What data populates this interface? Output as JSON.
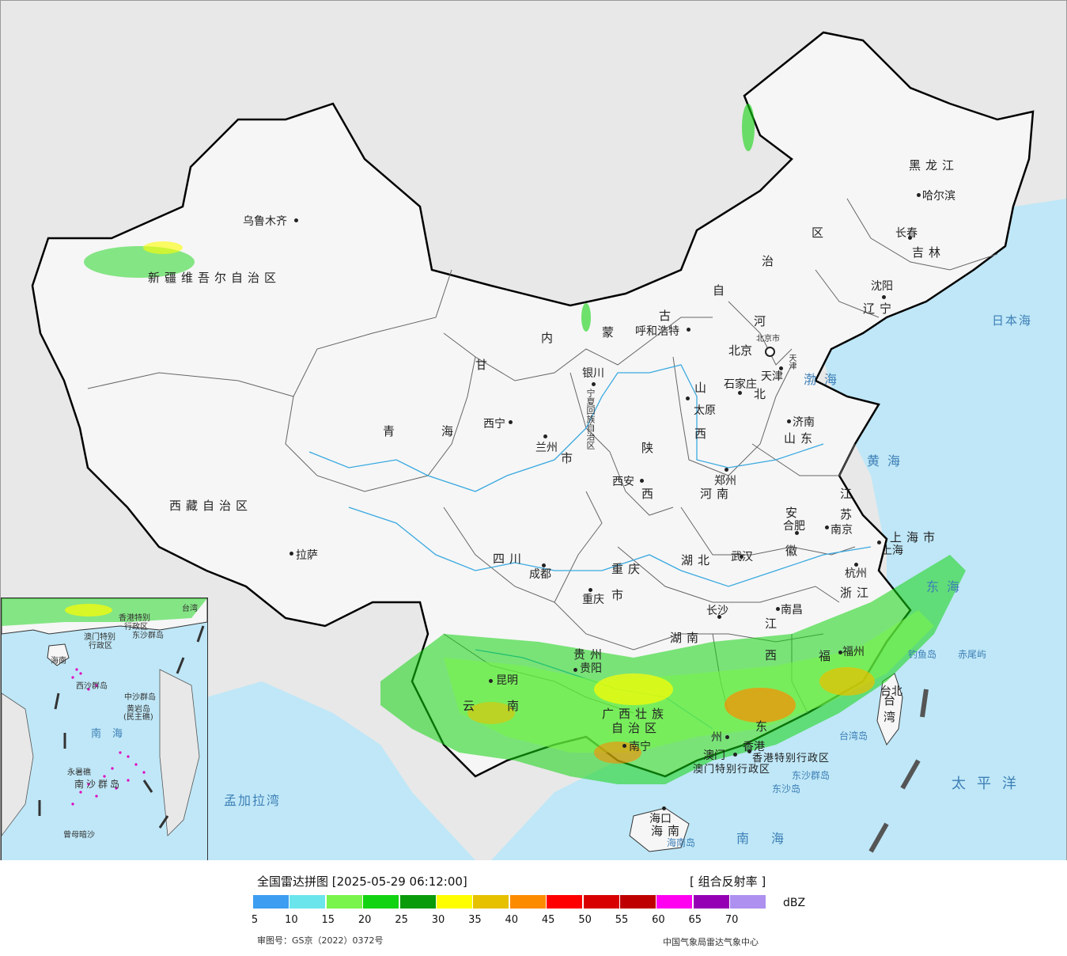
{
  "provinces": {
    "xinjiang": "新疆维吾尔自治区",
    "tibet": "西藏自治区",
    "qinghai_1": "青",
    "qinghai_2": "海",
    "gansu": "甘",
    "neimeng_1": "内",
    "neimeng_2": "蒙",
    "neimeng_3": "古",
    "neimeng_4": "自",
    "neimeng_5": "治",
    "neimeng_6": "区",
    "heilongjiang": "黑龙江",
    "jilin": "吉林",
    "liaoning": "辽宁",
    "hebei_1": "河",
    "hebei_2": "北",
    "shanxi_1": "山",
    "shanxi_2": "西",
    "shaanxi_1": "陕",
    "shaanxi_2": "西",
    "shandong": "山东",
    "henan": "河南",
    "jiangsu_1": "江",
    "jiangsu_2": "苏",
    "anhui_1": "安",
    "anhui_2": "徽",
    "hubei": "湖北",
    "hunan": "湖南",
    "sichuan": "四川",
    "chongqing_1": "重庆",
    "chongqing_2": "市",
    "zhejiang": "浙江",
    "jiangxi_1": "江",
    "jiangxi_2": "西",
    "fujian": "福",
    "guizhou": "贵州",
    "yunnan_1": "云",
    "yunnan_2": "南",
    "guangxi_1": "广西壮族",
    "guangxi_2": "自治区",
    "guangdong": "东",
    "hainan": "海南",
    "taiwan": "台湾",
    "shanghai": "上海市",
    "gansu_shi": "市",
    "ningxia": "宁夏回族自治区"
  },
  "cities": {
    "urumqi": "乌鲁木齐",
    "lhasa": "拉萨",
    "xining": "西宁",
    "lanzhou": "兰州",
    "yinchuan": "银川",
    "hohhot": "呼和浩特",
    "beijing": "北京",
    "beijing_small": "北京市",
    "tianjin": "天津",
    "tianjin_small": "天津",
    "shijiazhuang": "石家庄",
    "taiyuan": "太原",
    "jinan": "济南",
    "zhengzhou": "郑州",
    "xian": "西安",
    "chengdu": "成都",
    "chongqing": "重庆",
    "wuhan": "武汉",
    "hefei": "合肥",
    "nanjing": "南京",
    "shanghai": "上海",
    "hangzhou": "杭州",
    "nanchang": "南昌",
    "changsha": "长沙",
    "guiyang": "贵阳",
    "kunming": "昆明",
    "nanning": "南宁",
    "guangzhou": "州",
    "fuzhou": "福州",
    "taibei": "台北",
    "haikou": "海口",
    "shenyang": "沈阳",
    "changchun": "长春",
    "harbin": "哈尔滨",
    "hongkong": "香港",
    "macau": "澳门",
    "hk_sar": "香港特别行政区",
    "mo_sar": "澳门特别行政区"
  },
  "seas": {
    "japan_sea": "日本海",
    "bohai": "渤海",
    "yellow_sea": "黄海",
    "east_sea": "东海",
    "pacific": "太平洋",
    "south_sea": "南海",
    "bengal": "孟加拉湾"
  },
  "islands": {
    "diaoyu": "钓鱼岛",
    "chiwei": "赤尾屿",
    "taiwan_island": "台湾岛",
    "dongsha_islands": "东沙群岛",
    "dongsha_island": "东沙岛",
    "hainan_island": "海南岛"
  },
  "inset": {
    "labels": {
      "taiwan": "台湾",
      "hk": "香港特别",
      "hk2": "行政区",
      "mo": "澳门特别",
      "mo2": "行政区",
      "dongsha": "东沙群岛",
      "hainan": "海南",
      "xisha": "西沙群岛",
      "zhongsha": "中沙群岛",
      "huangyan": "黄岩岛",
      "minzhu": "(民主礁)",
      "nanhai": "南海",
      "yongshu": "永暑礁",
      "nansha": "南沙群岛",
      "zengmu": "曾母暗沙"
    }
  },
  "legend": {
    "title": "全国雷达拼图 [2025-05-29 06:12:00]",
    "product": "[ 组合反射率 ]",
    "unit": "dBZ",
    "review_number": "审图号：GS京（2022）0372号",
    "organization": "中国气象局雷达气象中心",
    "ticks": [
      "5",
      "10",
      "15",
      "20",
      "25",
      "30",
      "35",
      "40",
      "45",
      "50",
      "55",
      "60",
      "65",
      "70"
    ],
    "colors": [
      "#3d9df0",
      "#6ae5ec",
      "#78f44a",
      "#12d311",
      "#0a9b0b",
      "#fefe00",
      "#e6c100",
      "#fd8b00",
      "#fe0000",
      "#d80000",
      "#bf0000",
      "#ff00f0",
      "#9600b4",
      "#ad90f0"
    ]
  }
}
